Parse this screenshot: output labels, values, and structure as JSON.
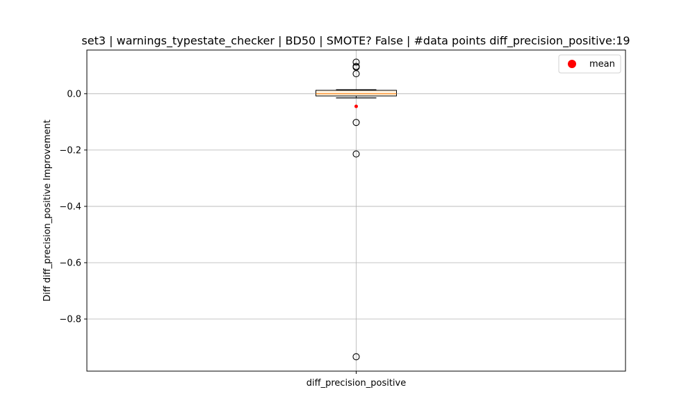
{
  "chart_data": {
    "type": "box",
    "title": "set3 | warnings_typestate_checker | BD50 | SMOTE? False | #data points diff_precision_positive:19",
    "xlabel": "",
    "ylabel": "Diff diff_precision_positive Improvement",
    "categories": [
      "diff_precision_positive"
    ],
    "ylim": [
      -0.985,
      0.155
    ],
    "yticks": [
      0.0,
      -0.2,
      -0.4,
      -0.6,
      -0.8
    ],
    "ytick_labels": [
      "0.0",
      "−0.2",
      "−0.4",
      "−0.6",
      "−0.8"
    ],
    "grid": true,
    "box": {
      "whisker_low": -0.015,
      "q1": -0.008,
      "median": 0.0,
      "q3": 0.012,
      "whisker_high": 0.014,
      "mean": -0.045,
      "outliers": [
        0.112,
        0.097,
        0.094,
        0.071,
        -0.102,
        -0.214,
        -0.934
      ]
    },
    "legend": {
      "placement": "top-right",
      "entries": [
        {
          "label": "mean",
          "color": "#ff0000"
        }
      ]
    },
    "colors": {
      "box_fill": "#fff3e0",
      "median": "#ff7f0e",
      "mean": "#ff0000",
      "grid": "#b0b0b0"
    }
  }
}
